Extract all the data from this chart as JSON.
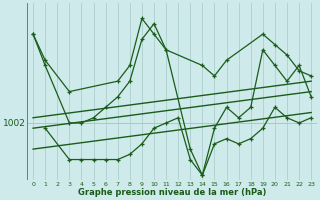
{
  "title": "Graphe pression niveau de la mer (hPa)",
  "background_color": "#ceeaea",
  "grid_color": "#a8c8c8",
  "line_color": "#1a5c1a",
  "x_ticks": [
    0,
    1,
    2,
    3,
    4,
    5,
    6,
    7,
    8,
    9,
    10,
    11,
    12,
    13,
    14,
    15,
    16,
    17,
    18,
    19,
    20,
    21,
    22,
    23
  ],
  "ylabel_value": 1002,
  "xlim": [
    -0.5,
    23.5
  ],
  "ylim": [
    996.5,
    1013.5
  ],
  "upper_line_x": [
    0,
    1,
    3,
    7,
    8,
    9,
    10,
    11,
    14,
    15,
    16,
    19,
    20,
    21,
    22,
    23
  ],
  "upper_line_y": [
    1010.5,
    1008.0,
    1005.0,
    1006.0,
    1007.5,
    1012.0,
    1010.5,
    1009.0,
    1007.5,
    1006.5,
    1008.0,
    1010.5,
    1009.5,
    1008.5,
    1007.0,
    1006.5
  ],
  "main_line_x": [
    0,
    1,
    3,
    4,
    5,
    6,
    7,
    8,
    9,
    10,
    11,
    13,
    14,
    15,
    16,
    17,
    18,
    19,
    20,
    21,
    22,
    23
  ],
  "main_line_y": [
    1010.5,
    1007.5,
    1002.0,
    1002.0,
    1002.5,
    1003.5,
    1004.5,
    1006.0,
    1010.0,
    1011.5,
    1009.0,
    999.5,
    997.0,
    1001.5,
    1003.5,
    1002.5,
    1003.5,
    1009.0,
    1007.5,
    1006.0,
    1007.5,
    1004.5
  ],
  "lower_line_x": [
    1,
    3,
    4,
    5,
    6,
    7,
    8,
    9,
    10,
    11,
    12,
    13,
    14,
    15,
    16,
    17,
    18,
    19,
    20,
    21,
    22,
    23
  ],
  "lower_line_y": [
    1001.5,
    998.5,
    998.5,
    998.5,
    998.5,
    998.5,
    999.0,
    1000.0,
    1001.5,
    1002.0,
    1002.5,
    998.5,
    997.0,
    1000.0,
    1000.5,
    1000.0,
    1000.5,
    1001.5,
    1003.5,
    1002.5,
    1002.0,
    1002.5
  ],
  "trend1_x": [
    0,
    23
  ],
  "trend1_y": [
    1002.5,
    1006.0
  ],
  "trend2_x": [
    0,
    23
  ],
  "trend2_y": [
    1001.5,
    1005.0
  ],
  "trend3_x": [
    0,
    23
  ],
  "trend3_y": [
    999.5,
    1003.0
  ]
}
